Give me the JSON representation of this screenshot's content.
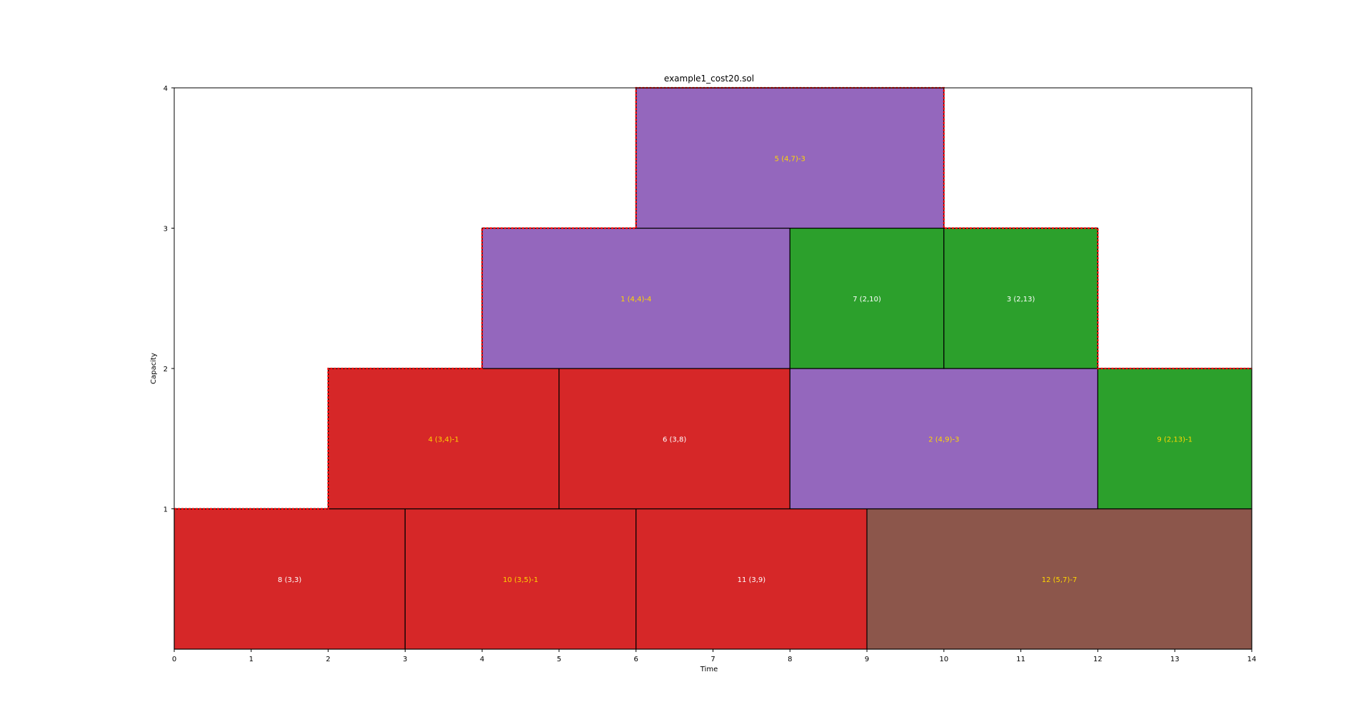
{
  "chart_data": {
    "type": "gantt-packing",
    "title": "example1_cost20.sol",
    "xlabel": "Time",
    "ylabel": "Capacity",
    "xlim": [
      0,
      14
    ],
    "ylim": [
      0,
      4
    ],
    "xticks": [
      0,
      1,
      2,
      3,
      4,
      5,
      6,
      7,
      8,
      9,
      10,
      11,
      12,
      13,
      14
    ],
    "xtick_labels": [
      "0",
      "1",
      "2",
      "3",
      "4",
      "5",
      "6",
      "7",
      "8",
      "9",
      "10",
      "11",
      "12",
      "13",
      "14"
    ],
    "yticks": [
      1,
      2,
      3,
      4
    ],
    "ytick_labels": [
      "1",
      "2",
      "3",
      "4"
    ],
    "grid": false,
    "blocks": [
      {
        "label": "8 (3,3)",
        "x0": 0,
        "x1": 3,
        "y0": 0,
        "y1": 1,
        "fill": "#d62728",
        "text_color": "#ffffff"
      },
      {
        "label": "10 (3,5)-1",
        "x0": 3,
        "x1": 6,
        "y0": 0,
        "y1": 1,
        "fill": "#d62728",
        "text_color": "#ffd700"
      },
      {
        "label": "11 (3,9)",
        "x0": 6,
        "x1": 9,
        "y0": 0,
        "y1": 1,
        "fill": "#d62728",
        "text_color": "#ffffff"
      },
      {
        "label": "12 (5,7)-7",
        "x0": 9,
        "x1": 14,
        "y0": 0,
        "y1": 1,
        "fill": "#8c564b",
        "text_color": "#ffd700"
      },
      {
        "label": "4 (3,4)-1",
        "x0": 2,
        "x1": 5,
        "y0": 1,
        "y1": 2,
        "fill": "#d62728",
        "text_color": "#ffd700"
      },
      {
        "label": "6 (3,8)",
        "x0": 5,
        "x1": 8,
        "y0": 1,
        "y1": 2,
        "fill": "#d62728",
        "text_color": "#ffffff"
      },
      {
        "label": "2 (4,9)-3",
        "x0": 8,
        "x1": 12,
        "y0": 1,
        "y1": 2,
        "fill": "#9467bd",
        "text_color": "#ffd700"
      },
      {
        "label": "9 (2,13)-1",
        "x0": 12,
        "x1": 14,
        "y0": 1,
        "y1": 2,
        "fill": "#2ca02c",
        "text_color": "#ffd700"
      },
      {
        "label": "1 (4,4)-4",
        "x0": 4,
        "x1": 8,
        "y0": 2,
        "y1": 3,
        "fill": "#9467bd",
        "text_color": "#ffd700"
      },
      {
        "label": "7 (2,10)",
        "x0": 8,
        "x1": 10,
        "y0": 2,
        "y1": 3,
        "fill": "#2ca02c",
        "text_color": "#ffffff"
      },
      {
        "label": "3 (2,13)",
        "x0": 10,
        "x1": 12,
        "y0": 2,
        "y1": 3,
        "fill": "#2ca02c",
        "text_color": "#ffffff"
      },
      {
        "label": "5 (4,7)-3",
        "x0": 6,
        "x1": 10,
        "y0": 3,
        "y1": 4,
        "fill": "#9467bd",
        "text_color": "#ffd700"
      }
    ],
    "capacity_profile": [
      [
        0,
        1
      ],
      [
        2,
        1
      ],
      [
        2,
        2
      ],
      [
        4,
        2
      ],
      [
        4,
        3
      ],
      [
        6,
        3
      ],
      [
        6,
        4
      ],
      [
        10,
        4
      ],
      [
        10,
        3
      ],
      [
        12,
        3
      ],
      [
        12,
        2
      ],
      [
        14,
        2
      ]
    ],
    "capacity_profile_color": "#ff0000"
  }
}
